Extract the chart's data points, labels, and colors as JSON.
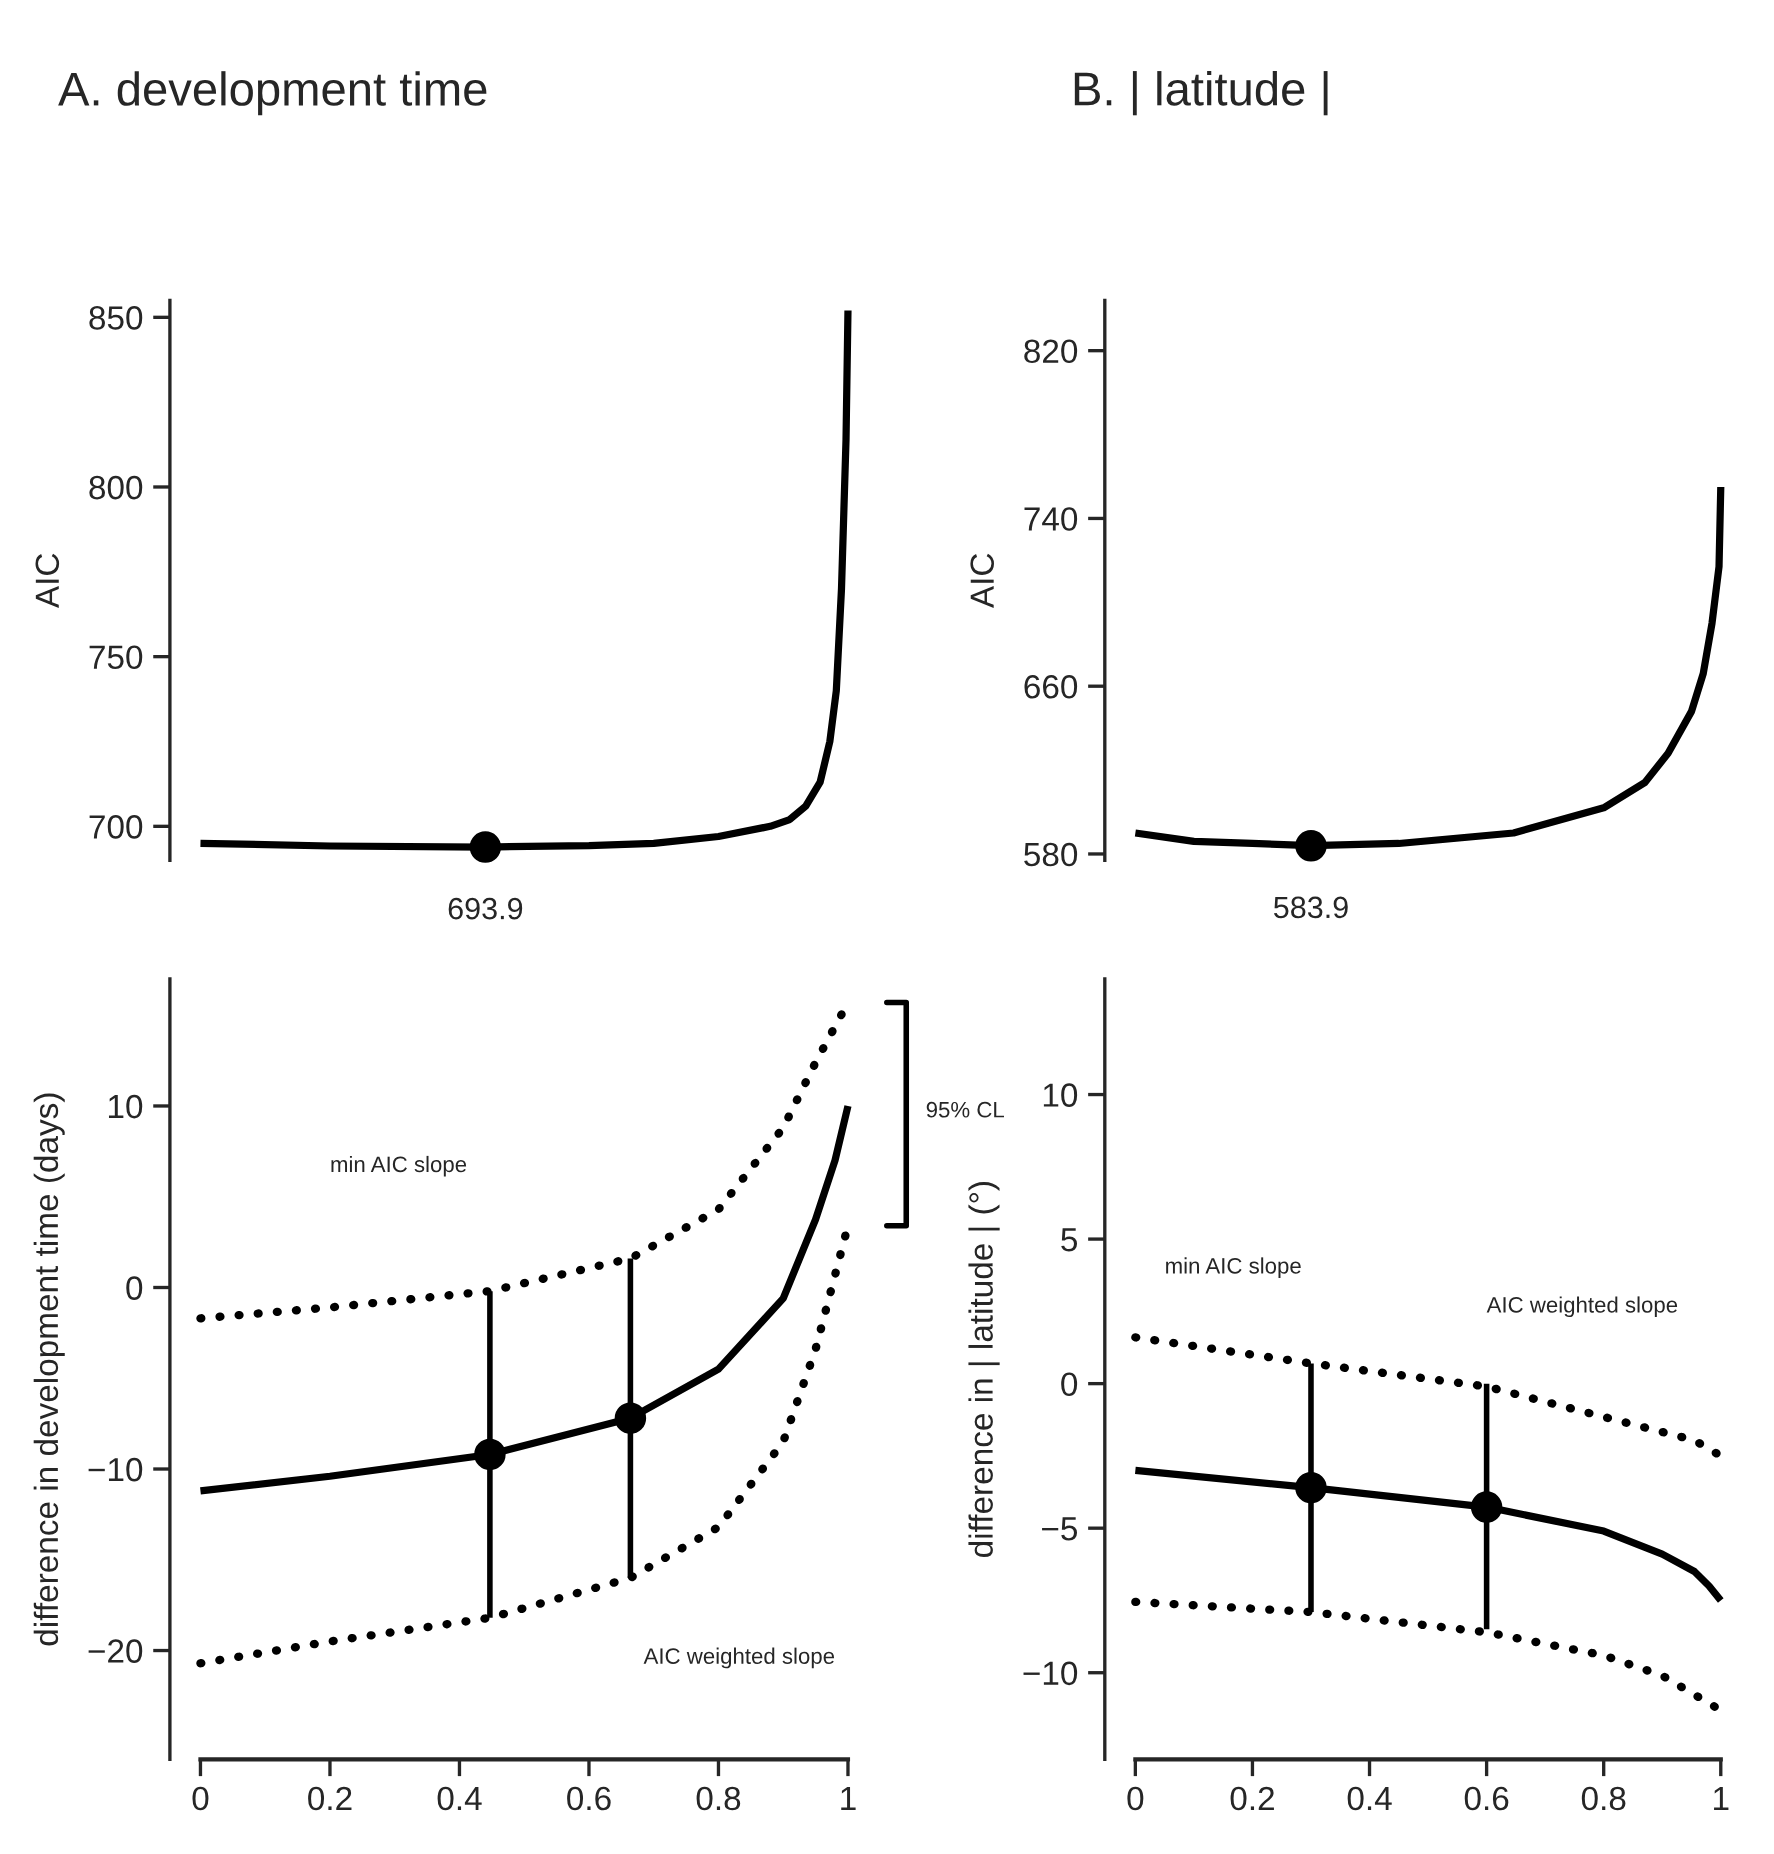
{
  "chart_data": [
    {
      "type": "line",
      "title": "A. development time",
      "ylabel": "AIC",
      "xlim": [
        0,
        1
      ],
      "ylim": [
        690,
        855
      ],
      "yticks": [
        700,
        750,
        800,
        850
      ],
      "tick_labels": "y",
      "series": [
        {
          "color": "#000000",
          "x": [
            0,
            0.2,
            0.44,
            0.6,
            0.7,
            0.8,
            0.88,
            0.91,
            0.935,
            0.957,
            0.972,
            0.982,
            0.99,
            0.997,
            1.0
          ],
          "values": [
            695,
            694.2,
            693.9,
            694.3,
            695,
            697,
            700,
            702,
            706,
            713,
            725,
            740,
            770,
            814,
            852
          ]
        },
        {
          "type": "scatter",
          "color": "#000000",
          "marker": "circle",
          "x": [
            0.44
          ],
          "values": [
            693.9
          ]
        }
      ],
      "annotations": [
        {
          "text": "693.9",
          "x": 0.44,
          "y": 693.9
        }
      ]
    },
    {
      "type": "line",
      "title": "B. | latitude |",
      "ylabel": "AIC",
      "xlim": [
        0,
        1
      ],
      "ylim": [
        577,
        844
      ],
      "yticks": [
        580,
        660,
        740,
        820
      ],
      "tick_labels": "y",
      "series": [
        {
          "color": "#000000",
          "x": [
            0,
            0.1,
            0.2,
            0.3,
            0.45,
            0.646,
            0.8,
            0.87,
            0.91,
            0.95,
            0.97,
            0.985,
            0.997,
            1.0
          ],
          "values": [
            590,
            586,
            585,
            584,
            585,
            590,
            602,
            614,
            628,
            648,
            666,
            690,
            717,
            755
          ]
        },
        {
          "type": "scatter",
          "color": "#000000",
          "marker": "circle",
          "x": [
            0.3
          ],
          "values": [
            583.9
          ]
        }
      ],
      "annotations": [
        {
          "text": "583.9",
          "x": 0.3,
          "y": 583.9
        }
      ]
    },
    {
      "type": "line",
      "ylabel": "difference in development time (days)",
      "xlim": [
        0,
        1
      ],
      "xticks": [
        0,
        0.2,
        0.4,
        0.6,
        0.8,
        1
      ],
      "ylim": [
        -26,
        17
      ],
      "yticks": [
        -20,
        -10,
        0,
        10
      ],
      "series": [
        {
          "color": "#000000",
          "line_style": "solid",
          "x": [
            0,
            0.2,
            0.447,
            0.664,
            0.8,
            0.9,
            0.95,
            0.98,
            1.0
          ],
          "values": [
            -11.2,
            -10.4,
            -9.2,
            -7.2,
            -4.5,
            -0.6,
            3.75,
            7,
            10
          ]
        },
        {
          "color": "#000000",
          "line_style": "dotted",
          "x": [
            0,
            0.2,
            0.447,
            0.664,
            0.8,
            0.9,
            0.95,
            1.0
          ],
          "values": [
            -1.7,
            -1.1,
            -0.2,
            1.6,
            4.3,
            8.8,
            12.4,
            15.7
          ]
        },
        {
          "color": "#000000",
          "line_style": "dotted",
          "x": [
            0,
            0.2,
            0.447,
            0.664,
            0.8,
            0.9,
            0.95,
            1.0
          ],
          "values": [
            -20.7,
            -19.5,
            -18.2,
            -16,
            -13.2,
            -8.5,
            -3.4,
            3.4
          ]
        },
        {
          "type": "scatter",
          "color": "#000000",
          "marker": "circle",
          "x": [
            0.447,
            0.664
          ],
          "values": [
            -9.2,
            -7.2
          ],
          "errors": [
            [
              -18.2,
              -0.2
            ],
            [
              -16,
              1.6
            ]
          ]
        }
      ],
      "annotations": [
        "min AIC slope",
        "AIC weighted slope",
        "95% CL"
      ]
    },
    {
      "type": "line",
      "ylabel": "difference in | latitude | (°)",
      "xlim": [
        0,
        1
      ],
      "xticks": [
        0,
        0.2,
        0.4,
        0.6,
        0.8,
        1
      ],
      "ylim": [
        -13,
        14
      ],
      "yticks": [
        -10,
        -5,
        0,
        5,
        10
      ],
      "series": [
        {
          "color": "#000000",
          "line_style": "solid",
          "x": [
            0,
            0.3,
            0.6,
            0.8,
            0.9,
            0.955,
            0.98,
            1.0
          ],
          "values": [
            -3.0,
            -3.6,
            -4.27,
            -5.1,
            -5.9,
            -6.5,
            -7.0,
            -7.5
          ]
        },
        {
          "color": "#000000",
          "line_style": "dotted",
          "x": [
            0,
            0.3,
            0.6,
            0.8,
            0.955,
            1.0
          ],
          "values": [
            1.6,
            0.7,
            -0.1,
            -1.15,
            -1.96,
            -2.5
          ]
        },
        {
          "color": "#000000",
          "line_style": "dotted",
          "x": [
            0,
            0.3,
            0.6,
            0.8,
            0.9,
            1.0
          ],
          "values": [
            -7.55,
            -7.9,
            -8.6,
            -9.4,
            -10.1,
            -11.3
          ]
        },
        {
          "type": "scatter",
          "color": "#000000",
          "marker": "circle",
          "x": [
            0.3,
            0.6
          ],
          "values": [
            -3.6,
            -4.27
          ],
          "errors": [
            [
              -7.9,
              0.7
            ],
            [
              -8.5,
              0
            ]
          ]
        }
      ],
      "annotations": [
        "min AIC slope",
        "AIC weighted slope"
      ]
    }
  ]
}
